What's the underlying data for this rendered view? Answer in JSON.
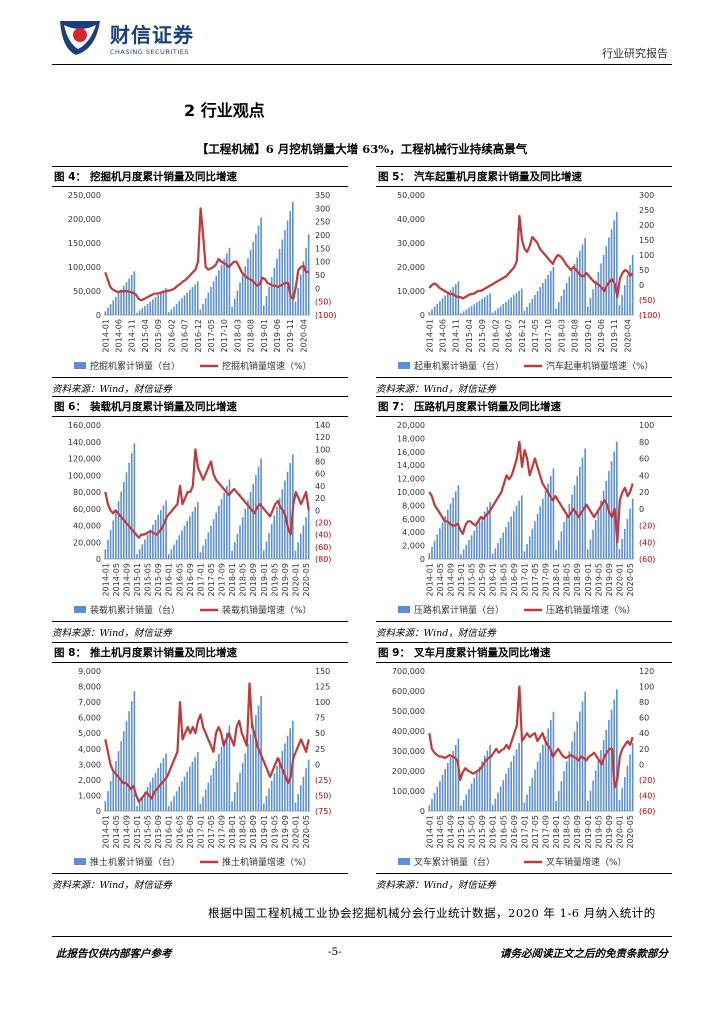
{
  "header": {
    "logo_cn": "财信证券",
    "logo_en": "CHASING SECURITIES",
    "right": "行业研究报告"
  },
  "section_title": "2 行业观点",
  "subhead": "【工程机械】6 月挖机销量大增 63%，工程机械行业持续高景气",
  "figures": [
    {
      "no": "图 4：",
      "title": "挖掘机月度累计销量及同比增速",
      "source": "资料来源：Wind，财信证券",
      "legend_bar": "挖掘机累计销量（台）",
      "legend_line": "挖掘机销量增速（%）"
    },
    {
      "no": "图 5：",
      "title": "汽车起重机月度累计销量及同比增速",
      "source": "资料来源：Wind，财信证券",
      "legend_bar": "起重机累计销量（台）",
      "legend_line": "汽车起重机销量增速（%）"
    },
    {
      "no": "图 6：",
      "title": "装载机月度累计销量及同比增速",
      "source": "资料来源：Wind，财信证券",
      "legend_bar": "装载机累计销量（台）",
      "legend_line": "装载机销量增速（%）"
    },
    {
      "no": "图 7：",
      "title": "压路机月度累计销量及同比增速",
      "source": "资料来源：Wind，财信证券",
      "legend_bar": "压路机累计销量（台）",
      "legend_line": "压路机销量增速（%）"
    },
    {
      "no": "图 8：",
      "title": "推土机月度累计销量及同比增速",
      "source": "资料来源：Wind，财信证券",
      "legend_bar": "推土机累计销量（台）",
      "legend_line": "推土机销量增速（%）"
    },
    {
      "no": "图 9：",
      "title": "叉车月度累计销量及同比增速",
      "source": "资料来源：Wind，财信证券",
      "legend_bar": "叉车累计销量（台）",
      "legend_line": "叉车销量增速（%）"
    }
  ],
  "body_text": "根据中国工程机械工业协会挖掘机械分会行业统计数据，2020 年 1-6 月纳入统计的",
  "footer": {
    "left": "此报告仅供内部客户参考",
    "page": "-5-",
    "right": "请务必阅读正文之后的免责条款部分"
  },
  "colors": {
    "bar": "#5b8fd6",
    "line": "#c0393b",
    "neg_tick": "#c00000"
  },
  "chart_data": [
    {
      "type": "bar+line",
      "title": "挖掘机月度累计销量及同比增速",
      "left_ticks": [
        "250,000",
        "200,000",
        "150,000",
        "100,000",
        "50,000",
        "0"
      ],
      "right_ticks": [
        "350",
        "300",
        "250",
        "200",
        "150",
        "100",
        "50",
        "0",
        "(50)",
        "(100)"
      ],
      "ylim_left": [
        0,
        250000
      ],
      "ylim_right": [
        -100,
        350
      ],
      "x_ticks": [
        "2014-01",
        "2014-06",
        "2014-11",
        "2015-04",
        "2015-09",
        "2016-02",
        "2016-07",
        "2016-12",
        "2017-05",
        "2017-10",
        "2018-03",
        "2018-08",
        "2019-01",
        "2019-06",
        "2019-11",
        "2020-04"
      ],
      "series": [
        {
          "name": "挖掘机累计销量（台）",
          "kind": "bar",
          "start": "2014-01",
          "end": "2020-06",
          "annual_totals": {
            "2014": 91000,
            "2015": 56000,
            "2016": 70000,
            "2017": 140000,
            "2018": 203000,
            "2019": 236000,
            "2020": 168000
          }
        },
        {
          "name": "挖掘机销量增速（%）",
          "kind": "line",
          "start": "2014-01",
          "end": "2020-06",
          "values": [
            60,
            30,
            5,
            -5,
            -10,
            -15,
            -10,
            -12,
            -10,
            -12,
            -15,
            -18,
            -25,
            -40,
            -45,
            -40,
            -35,
            -30,
            -25,
            -20,
            -20,
            -18,
            -15,
            -12,
            -10,
            -8,
            -5,
            0,
            10,
            15,
            25,
            30,
            40,
            50,
            60,
            70,
            100,
            300,
            200,
            80,
            70,
            75,
            80,
            90,
            110,
            100,
            95,
            90,
            80,
            90,
            100,
            100,
            80,
            60,
            50,
            40,
            35,
            30,
            20,
            10,
            15,
            40,
            35,
            20,
            15,
            10,
            10,
            5,
            10,
            15,
            20,
            20,
            -30,
            -40,
            5,
            70,
            80,
            85,
            60,
            63
          ]
        }
      ]
    },
    {
      "type": "bar+line",
      "title": "汽车起重机月度累计销量及同比增速",
      "left_ticks": [
        "50,000",
        "40,000",
        "30,000",
        "20,000",
        "10,000",
        "0"
      ],
      "right_ticks": [
        "300",
        "250",
        "200",
        "150",
        "100",
        "50",
        "0",
        "(50)",
        "(100)"
      ],
      "ylim_left": [
        0,
        50000
      ],
      "ylim_right": [
        -100,
        300
      ],
      "x_ticks": [
        "2014-01",
        "2014-06",
        "2014-11",
        "2015-04",
        "2015-09",
        "2016-02",
        "2016-07",
        "2016-12",
        "2017-05",
        "2017-10",
        "2018-03",
        "2018-08",
        "2019-01",
        "2019-06",
        "2019-11",
        "2020-04"
      ],
      "series": [
        {
          "name": "起重机累计销量（台）",
          "kind": "bar",
          "start": "2014-01",
          "end": "2020-06",
          "annual_totals": {
            "2014": 14000,
            "2015": 9000,
            "2016": 11000,
            "2017": 20000,
            "2018": 32000,
            "2019": 43000,
            "2020": 25000
          }
        },
        {
          "name": "汽车起重机销量增速（%）",
          "kind": "line",
          "start": "2014-01",
          "end": "2020-06",
          "values": [
            -10,
            0,
            5,
            0,
            -10,
            -15,
            -20,
            -25,
            -30,
            -30,
            -35,
            -40,
            -40,
            -45,
            -40,
            -35,
            -30,
            -30,
            -25,
            -20,
            -20,
            -15,
            -10,
            -5,
            0,
            5,
            10,
            15,
            20,
            25,
            30,
            40,
            50,
            60,
            80,
            230,
            150,
            120,
            110,
            130,
            160,
            150,
            140,
            120,
            110,
            100,
            90,
            80,
            70,
            90,
            100,
            95,
            85,
            70,
            60,
            50,
            60,
            50,
            40,
            30,
            30,
            40,
            30,
            20,
            10,
            5,
            0,
            -10,
            -20,
            0,
            10,
            20,
            5,
            -40,
            20,
            40,
            50,
            45,
            30,
            40
          ]
        }
      ]
    },
    {
      "type": "bar+line",
      "title": "装载机月度累计销量及同比增速",
      "left_ticks": [
        "160,000",
        "140,000",
        "120,000",
        "100,000",
        "80,000",
        "60,000",
        "40,000",
        "20,000",
        "0"
      ],
      "right_ticks": [
        "140",
        "120",
        "100",
        "80",
        "60",
        "40",
        "20",
        "0",
        "(20)",
        "(40)",
        "(60)",
        "(80)"
      ],
      "ylim_left": [
        0,
        160000
      ],
      "ylim_right": [
        -80,
        140
      ],
      "x_ticks": [
        "2014-01",
        "2014-05",
        "2014-09",
        "2015-01",
        "2015-05",
        "2015-09",
        "2016-01",
        "2016-05",
        "2016-09",
        "2017-01",
        "2017-05",
        "2017-09",
        "2018-01",
        "2018-05",
        "2018-09",
        "2019-01",
        "2019-05",
        "2019-09",
        "2020-01",
        "2020-05"
      ],
      "series": [
        {
          "name": "装载机累计销量（台）",
          "kind": "bar",
          "start": "2014-01",
          "end": "2020-06",
          "annual_totals": {
            "2014": 138000,
            "2015": 70000,
            "2016": 68000,
            "2017": 95000,
            "2018": 120000,
            "2019": 125000,
            "2020": 60000
          }
        },
        {
          "name": "装载机销量增速（%）",
          "kind": "line",
          "start": "2014-01",
          "end": "2020-06",
          "values": [
            30,
            10,
            0,
            -5,
            0,
            -5,
            -10,
            -15,
            -20,
            -25,
            -30,
            -35,
            -40,
            -45,
            -40,
            -40,
            -38,
            -35,
            -35,
            -38,
            -40,
            -35,
            -30,
            -20,
            -10,
            -5,
            0,
            5,
            10,
            40,
            10,
            20,
            30,
            30,
            40,
            100,
            70,
            60,
            50,
            60,
            70,
            80,
            60,
            50,
            45,
            40,
            35,
            30,
            25,
            30,
            35,
            30,
            25,
            20,
            15,
            10,
            5,
            0,
            -5,
            5,
            10,
            5,
            0,
            -5,
            -10,
            0,
            10,
            15,
            5,
            0,
            -10,
            -30,
            -40,
            10,
            30,
            20,
            10,
            20,
            30,
            0
          ]
        }
      ]
    },
    {
      "type": "bar+line",
      "title": "压路机月度累计销量及同比增速",
      "left_ticks": [
        "20,000",
        "18,000",
        "16,000",
        "14,000",
        "12,000",
        "10,000",
        "8,000",
        "6,000",
        "4,000",
        "2,000",
        "0"
      ],
      "right_ticks": [
        "100",
        "80",
        "60",
        "40",
        "20",
        "0",
        "(20)",
        "(40)",
        "(60)"
      ],
      "ylim_left": [
        0,
        20000
      ],
      "ylim_right": [
        -60,
        100
      ],
      "x_ticks": [
        "2014-01",
        "2014-05",
        "2014-09",
        "2015-01",
        "2015-05",
        "2015-09",
        "2016-01",
        "2016-05",
        "2016-09",
        "2017-01",
        "2017-05",
        "2017-09",
        "2018-01",
        "2018-05",
        "2018-09",
        "2019-01",
        "2019-05",
        "2019-09",
        "2020-01",
        "2020-05"
      ],
      "series": [
        {
          "name": "压路机累计销量（台）",
          "kind": "bar",
          "start": "2014-01",
          "end": "2020-06",
          "annual_totals": {
            "2014": 11000,
            "2015": 8500,
            "2016": 9500,
            "2017": 13500,
            "2018": 16500,
            "2019": 17500,
            "2020": 9000
          }
        },
        {
          "name": "压路机销量增速（%）",
          "kind": "line",
          "start": "2014-01",
          "end": "2020-06",
          "values": [
            20,
            15,
            5,
            0,
            -5,
            -10,
            -15,
            -15,
            -18,
            -20,
            -20,
            -18,
            -25,
            -30,
            -20,
            -15,
            -15,
            -18,
            -20,
            -15,
            -10,
            -12,
            -8,
            -5,
            0,
            5,
            10,
            15,
            20,
            30,
            40,
            35,
            40,
            50,
            60,
            80,
            50,
            70,
            60,
            40,
            50,
            60,
            50,
            40,
            30,
            25,
            20,
            15,
            10,
            15,
            10,
            5,
            0,
            -5,
            -10,
            -5,
            0,
            -5,
            -10,
            -5,
            0,
            5,
            0,
            -5,
            -10,
            -5,
            0,
            5,
            10,
            5,
            -5,
            -10,
            0,
            -40,
            10,
            20,
            25,
            15,
            20,
            30
          ]
        }
      ]
    },
    {
      "type": "bar+line",
      "title": "推土机月度累计销量及同比增速",
      "left_ticks": [
        "9,000",
        "8,000",
        "7,000",
        "6,000",
        "5,000",
        "4,000",
        "3,000",
        "2,000",
        "1,000",
        "0"
      ],
      "right_ticks": [
        "150",
        "125",
        "100",
        "75",
        "50",
        "25",
        "0",
        "(25)",
        "(50)",
        "(75)"
      ],
      "ylim_left": [
        0,
        9000
      ],
      "ylim_right": [
        -75,
        150
      ],
      "x_ticks": [
        "2014-01",
        "2014-05",
        "2014-09",
        "2015-01",
        "2015-05",
        "2015-09",
        "2016-01",
        "2016-05",
        "2016-09",
        "2017-01",
        "2017-05",
        "2017-09",
        "2018-01",
        "2018-05",
        "2018-09",
        "2019-01",
        "2019-05",
        "2019-09",
        "2020-01",
        "2020-05"
      ],
      "series": [
        {
          "name": "推土机累计销量（台）",
          "kind": "bar",
          "start": "2014-01",
          "end": "2020-06",
          "annual_totals": {
            "2014": 7700,
            "2015": 3700,
            "2016": 3800,
            "2017": 5500,
            "2018": 7400,
            "2019": 5800,
            "2020": 3300
          }
        },
        {
          "name": "推土机销量增速（%）",
          "kind": "line",
          "start": "2014-01",
          "end": "2020-06",
          "values": [
            40,
            20,
            0,
            -10,
            -15,
            -20,
            -25,
            -30,
            -30,
            -35,
            -40,
            -35,
            -50,
            -60,
            -55,
            -50,
            -45,
            -50,
            -55,
            -45,
            -40,
            -35,
            -30,
            -25,
            -20,
            -10,
            0,
            10,
            20,
            100,
            40,
            50,
            60,
            50,
            60,
            50,
            70,
            80,
            60,
            50,
            40,
            30,
            20,
            50,
            60,
            50,
            30,
            40,
            50,
            40,
            30,
            60,
            70,
            50,
            40,
            30,
            130,
            60,
            50,
            30,
            20,
            10,
            0,
            -10,
            -20,
            -10,
            0,
            10,
            0,
            -10,
            -20,
            -30,
            -20,
            10,
            20,
            30,
            40,
            30,
            20,
            40
          ]
        }
      ]
    },
    {
      "type": "bar+line",
      "title": "叉车月度累计销量及同比增速",
      "left_ticks": [
        "700,000",
        "600,000",
        "500,000",
        "400,000",
        "300,000",
        "200,000",
        "100,000",
        "0"
      ],
      "right_ticks": [
        "120",
        "100",
        "80",
        "60",
        "40",
        "20",
        "0",
        "(20)",
        "(40)",
        "(60)"
      ],
      "ylim_left": [
        0,
        700000
      ],
      "ylim_right": [
        -60,
        120
      ],
      "x_ticks": [
        "2014-01",
        "2014-05",
        "2014-09",
        "2015-01",
        "2015-05",
        "2015-09",
        "2016-01",
        "2016-05",
        "2016-09",
        "2017-01",
        "2017-05",
        "2017-09",
        "2018-01",
        "2018-05",
        "2018-09",
        "2019-01",
        "2019-05",
        "2019-09",
        "2020-01",
        "2020-05"
      ],
      "series": [
        {
          "name": "叉车累计销量（台）",
          "kind": "bar",
          "start": "2014-01",
          "end": "2020-06",
          "annual_totals": {
            "2014": 360000,
            "2015": 330000,
            "2016": 370000,
            "2017": 496000,
            "2018": 597000,
            "2019": 608000,
            "2020": 340000
          }
        },
        {
          "name": "叉车销量增速（%）",
          "kind": "line",
          "start": "2014-01",
          "end": "2020-06",
          "values": [
            40,
            20,
            15,
            12,
            10,
            10,
            8,
            10,
            12,
            10,
            8,
            5,
            -20,
            -10,
            -5,
            -8,
            -10,
            -12,
            -10,
            -8,
            -5,
            0,
            5,
            8,
            10,
            15,
            20,
            15,
            18,
            20,
            25,
            20,
            30,
            40,
            50,
            100,
            30,
            35,
            40,
            35,
            38,
            40,
            30,
            35,
            40,
            30,
            25,
            20,
            10,
            15,
            20,
            15,
            10,
            8,
            10,
            12,
            10,
            8,
            5,
            10,
            8,
            5,
            10,
            12,
            15,
            10,
            5,
            0,
            10,
            15,
            20,
            20,
            -30,
            -20,
            10,
            20,
            25,
            30,
            25,
            35
          ]
        }
      ]
    }
  ]
}
